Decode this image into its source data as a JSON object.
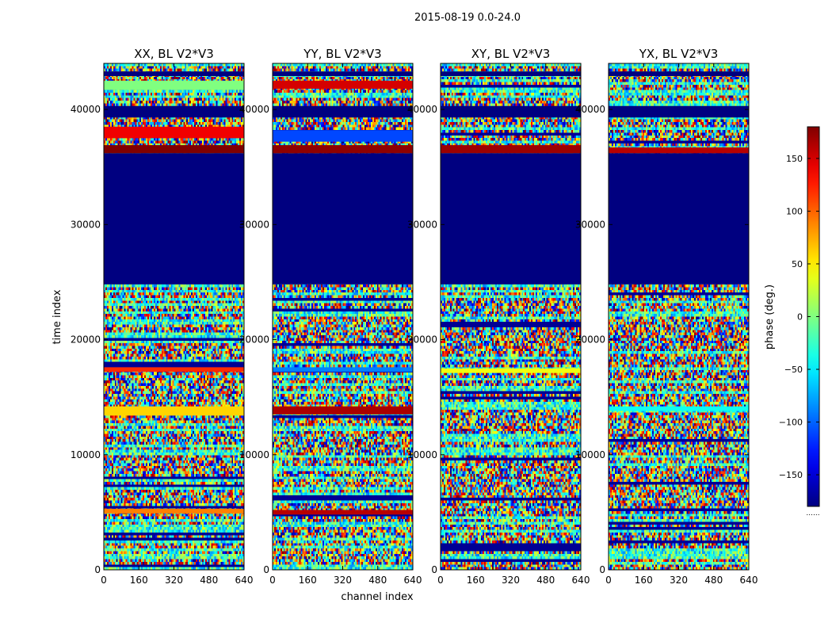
{
  "chart_data": {
    "type": "heatmap",
    "suptitle": "2015-08-19 0.0-24.0",
    "xlabel": "channel index",
    "ylabel": "time index",
    "xlim": [
      0,
      640
    ],
    "ylim": [
      0,
      44000
    ],
    "x_ticks": [
      "0",
      "160",
      "320",
      "480",
      "640"
    ],
    "y_ticks": [
      "0",
      "10000",
      "20000",
      "30000",
      "40000"
    ],
    "colorbar": {
      "label": "phase (deg.)",
      "range": [
        -180,
        180
      ],
      "ticks": [
        "150",
        "100",
        "50",
        "0",
        "−50",
        "−100",
        "−150"
      ],
      "tick_values": [
        150,
        100,
        50,
        0,
        -50,
        -100,
        -150
      ],
      "colormap": "jet",
      "footnote": "......"
    },
    "noise_rows": 190,
    "noise_cols": 90,
    "panels": [
      {
        "title": "XX, BL V2*V3",
        "seed": 11,
        "bands": [
          {
            "t0": 24800,
            "t1": 36200,
            "phase": -180
          },
          {
            "t0": 39300,
            "t1": 40300,
            "phase": -180
          },
          {
            "t0": 42900,
            "t1": 43300,
            "phase": -180
          },
          {
            "t0": 36200,
            "t1": 36900,
            "phase": 180
          },
          {
            "t0": 37500,
            "t1": 38500,
            "phase": 140
          },
          {
            "t0": 41700,
            "t1": 42500,
            "phase": 0
          },
          {
            "t0": 17200,
            "t1": 17600,
            "phase": 120
          },
          {
            "t0": 13400,
            "t1": 14200,
            "phase": 60
          },
          {
            "t0": 4900,
            "t1": 5300,
            "phase": 90
          }
        ]
      },
      {
        "title": "YY, BL V2*V3",
        "seed": 23,
        "bands": [
          {
            "t0": 24800,
            "t1": 36200,
            "phase": -180
          },
          {
            "t0": 39300,
            "t1": 40300,
            "phase": -180
          },
          {
            "t0": 42900,
            "t1": 43300,
            "phase": -180
          },
          {
            "t0": 36200,
            "t1": 36900,
            "phase": 175
          },
          {
            "t0": 37200,
            "t1": 38200,
            "phase": -110
          },
          {
            "t0": 41800,
            "t1": 42500,
            "phase": 150
          },
          {
            "t0": 17200,
            "t1": 17600,
            "phase": -90
          },
          {
            "t0": 13500,
            "t1": 14200,
            "phase": 165
          },
          {
            "t0": 4800,
            "t1": 5200,
            "phase": 160
          }
        ]
      },
      {
        "title": "XY, BL V2*V3",
        "seed": 37,
        "bands": [
          {
            "t0": 24800,
            "t1": 36200,
            "phase": -180
          },
          {
            "t0": 39300,
            "t1": 40300,
            "phase": -180
          },
          {
            "t0": 42900,
            "t1": 43300,
            "phase": -180
          },
          {
            "t0": 36200,
            "t1": 36900,
            "phase": 170
          },
          {
            "t0": 17100,
            "t1": 17500,
            "phase": 40
          }
        ]
      },
      {
        "title": "YX, BL V2*V3",
        "seed": 53,
        "bands": [
          {
            "t0": 24800,
            "t1": 36200,
            "phase": -180
          },
          {
            "t0": 39300,
            "t1": 40300,
            "phase": -180
          },
          {
            "t0": 42900,
            "t1": 43300,
            "phase": -180
          },
          {
            "t0": 36200,
            "t1": 36700,
            "phase": 160
          },
          {
            "t0": 13800,
            "t1": 14200,
            "phase": -40
          }
        ]
      }
    ]
  }
}
